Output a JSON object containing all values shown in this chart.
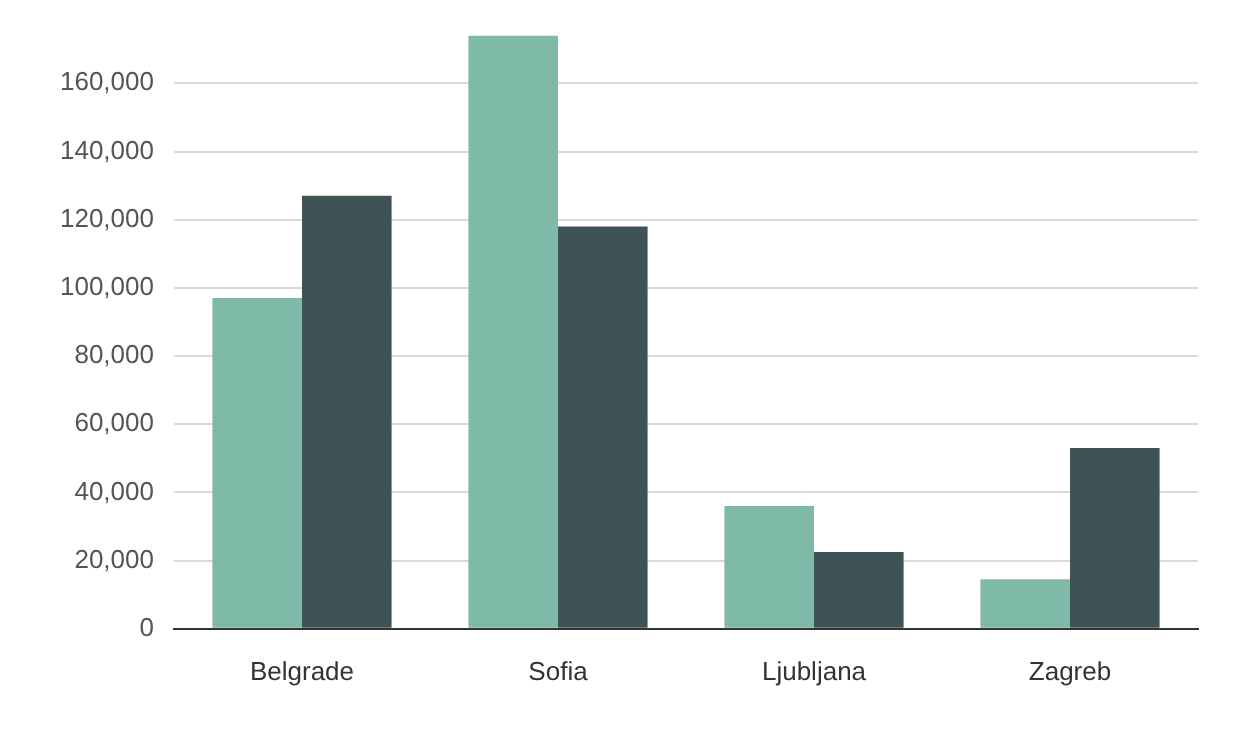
{
  "chart_data": {
    "type": "bar",
    "categories": [
      "Belgrade",
      "Sofia",
      "Ljubljana",
      "Zagreb"
    ],
    "series": [
      {
        "color": "#7fbaa9",
        "values": [
          97000,
          174000,
          36000,
          14500
        ]
      },
      {
        "color": "#3f5256",
        "values": [
          127000,
          118000,
          22500,
          53000
        ]
      }
    ],
    "ylim": [
      0,
      174000
    ],
    "yticks": [
      {
        "value": 0,
        "label": "0"
      },
      {
        "value": 20000,
        "label": "20,000"
      },
      {
        "value": 40000,
        "label": "40,000"
      },
      {
        "value": 60000,
        "label": "60,000"
      },
      {
        "value": 80000,
        "label": "80,000"
      },
      {
        "value": 100000,
        "label": "100,000"
      },
      {
        "value": 120000,
        "label": "120,000"
      },
      {
        "value": 140000,
        "label": "140,000"
      },
      {
        "value": 160000,
        "label": "160,000"
      }
    ],
    "grid": "y",
    "legend": false
  }
}
